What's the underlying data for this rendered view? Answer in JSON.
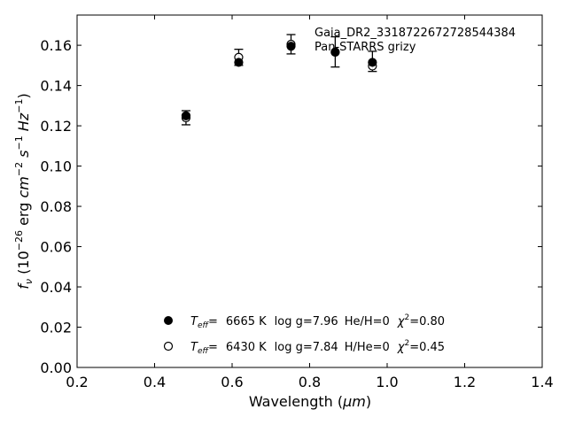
{
  "chart_data": {
    "type": "scatter",
    "xlabel_main": "Wavelength (",
    "xlabel_unit": "μm",
    "xlabel_close": ")",
    "ylabel_fnu": "f",
    "ylabel_nu": "ν",
    "ylabel_rest": " (10",
    "ylabel_exp": "−26",
    "ylabel_erg": " erg ",
    "ylabel_cm": "cm",
    "ylabel_cm_exp": "−2",
    "ylabel_s": " s",
    "ylabel_s_exp": "−1",
    "ylabel_hz": " Hz",
    "ylabel_hz_exp": "−1",
    "ylabel_end": ")",
    "xlim": [
      0.2,
      1.4
    ],
    "ylim": [
      0.0,
      0.175
    ],
    "xticks": [
      0.2,
      0.4,
      0.6,
      0.8,
      1.0,
      1.2,
      1.4
    ],
    "xtick_labels": [
      "0.2",
      "0.4",
      "0.6",
      "0.8",
      "1.0",
      "1.2",
      "1.4"
    ],
    "yticks": [
      0.0,
      0.02,
      0.04,
      0.06,
      0.08,
      0.1,
      0.12,
      0.14,
      0.16
    ],
    "ytick_labels": [
      "0.00",
      "0.02",
      "0.04",
      "0.06",
      "0.08",
      "0.10",
      "0.12",
      "0.14",
      "0.16"
    ],
    "grid": false,
    "annotations": [
      "Gaia_DR2_3318722672728544384",
      "Pan-STARRS grizy"
    ],
    "observed": {
      "x": [
        0.481,
        0.617,
        0.752,
        0.866,
        0.962
      ],
      "y": [
        0.124,
        0.154,
        0.1605,
        0.1567,
        0.152
      ],
      "yerr": [
        0.0035,
        0.004,
        0.0048,
        0.0075,
        0.005
      ]
    },
    "series": [
      {
        "marker": "filled-circle",
        "model_teff_label": "6665 K",
        "model_logg_label": "log g=7.96",
        "model_comp_label": "He/H=0",
        "model_chi_label": "=0.80",
        "x": [
          0.481,
          0.617,
          0.752,
          0.866,
          0.962
        ],
        "y": [
          0.125,
          0.1515,
          0.1595,
          0.1565,
          0.1515
        ]
      },
      {
        "marker": "open-circle",
        "model_teff_label": "6430 K",
        "model_logg_label": "log g=7.84",
        "model_comp_label": "H/He=0",
        "model_chi_label": "=0.45",
        "x": [
          0.481,
          0.617,
          0.752,
          0.866,
          0.962
        ],
        "y": [
          0.124,
          0.154,
          0.1605,
          0.1567,
          0.1497
        ]
      }
    ],
    "legend_teff": "T",
    "legend_eff": "eff",
    "legend_eq": "=",
    "legend_chi": "χ",
    "legend_chi_exp": "2",
    "legend_placement": "lower-center",
    "colors": {
      "marker": "#000000",
      "axis": "#000000",
      "background": "#ffffff"
    }
  }
}
